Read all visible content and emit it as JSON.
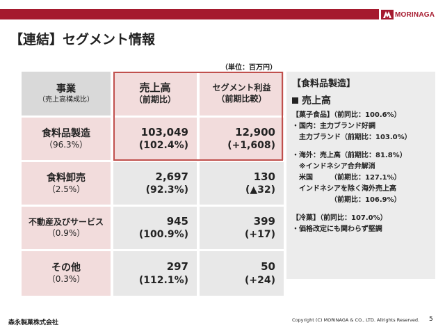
{
  "logo": {
    "text": "MORINAGA",
    "mark_icon": "morinaga-angel-icon"
  },
  "title": "【連結】セグメント情報",
  "unit": "（単位：百万円）",
  "table": {
    "headers": [
      {
        "main": "事業",
        "sub": "（売上高構成比）"
      },
      {
        "main": "売上高",
        "sub": "（前期比）"
      },
      {
        "main": "セグメント利益",
        "sub": "（前期比較）"
      }
    ],
    "rows": [
      {
        "name": "食料品製造",
        "share": "（96.3%）",
        "sales": "103,049",
        "sales_yoy": "(102.4%)",
        "profit": "12,900",
        "profit_change": "(+1,608)"
      },
      {
        "name": "食料卸売",
        "share": "（2.5%）",
        "sales": "2,697",
        "sales_yoy": "(92.3%)",
        "profit": "130",
        "profit_change": "(▲32)"
      },
      {
        "name": "不動産及びサービス",
        "share": "（0.9%）",
        "sales": "945",
        "sales_yoy": "(100.9%)",
        "profit": "399",
        "profit_change": "(+17)"
      },
      {
        "name": "その他",
        "share": "（0.3%）",
        "sales": "297",
        "sales_yoy": "(112.1%)",
        "profit": "50",
        "profit_change": "(+24)"
      }
    ]
  },
  "panel": {
    "title": "【食料品製造】",
    "subtitle": "売上高",
    "lines_1": [
      "【菓子食品】（前同比：100.6%）",
      "・国内：主力ブランド好調",
      "　主力ブランド（前期比：103.0%）"
    ],
    "lines_2": [
      "・海外：売上高（前期比：81.8%）",
      "　※インドネシア合弁解消",
      "　米国　　　（前期比：127.1%）",
      "　インドネシアを除く海外売上高",
      "　　　　　　（前期比：106.9%）"
    ],
    "lines_3": [
      "【冷菓】（前同比：107.0%）",
      "・価格改定にも関わらず堅調"
    ]
  },
  "footer": {
    "company": "森永製菓株式会社",
    "copyright": "Copyright (C) MORINAGA & CO., LTD. Allrights Reserved.",
    "page": "5"
  },
  "colors": {
    "brand": "#a51a2e",
    "highlight": "#c0504d",
    "label_bg": "#f2dcdc",
    "header_bg": "#d9d9d9",
    "cell_bg": "#e8e8e8",
    "panel_bg": "#ececec"
  }
}
